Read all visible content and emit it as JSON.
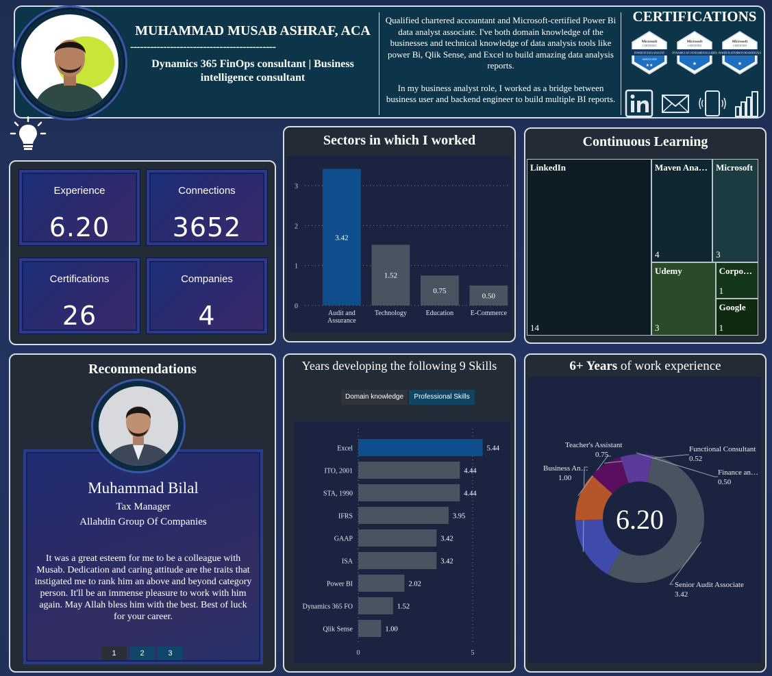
{
  "header": {
    "name": "MUHAMMAD MUSAB ASHRAF, ACA",
    "divider": "--------------------------------------------",
    "role": "Dynamics 365 FinOps consultant | Business intelligence consultant",
    "bio_1": "Qualified chartered accountant and Microsoft-certified Power Bi data analyst associate. I've both domain knowledge of the businesses and technical knowledge of data analysis tools like power Bi, Qlik Sense, and Excel to build amazing data analysis reports.",
    "bio_2": "In my business analyst role, I worked as a bridge between business user and backend engineer to build multiple BI reports.",
    "certifications_title": "CERTIFICATIONS",
    "badges": [
      {
        "top": "Microsoft",
        "sub": "CERTIFIED",
        "name": "POWER BI DATA ANALYST",
        "level": "ASSOCIATE"
      },
      {
        "top": "Microsoft",
        "sub": "CERTIFIED",
        "name": "DYNAMICS 365 FUNDAMENTALS (ERP)",
        "level": ""
      },
      {
        "top": "Microsoft",
        "sub": "CERTIFIED",
        "name": "POWER PLATFORM FUNDAMENTALS",
        "level": ""
      }
    ],
    "social_icons": [
      "linkedin-icon",
      "mail-icon",
      "phone-icon",
      "powerbi-icon"
    ]
  },
  "kpis": [
    {
      "label": "Experience",
      "value": "6.20"
    },
    {
      "label": "Connections",
      "value": "3652"
    },
    {
      "label": "Certifications",
      "value": "26"
    },
    {
      "label": "Companies",
      "value": "4"
    }
  ],
  "sectors": {
    "title": "Sectors in which I worked",
    "chart_data": {
      "type": "bar",
      "categories": [
        "Audit and Assurance",
        "Technology",
        "Education",
        "E-Commerce"
      ],
      "values": [
        3.42,
        1.52,
        0.75,
        0.5
      ],
      "ylim": [
        0,
        3.5
      ],
      "yticks": [
        0,
        1,
        2,
        3
      ],
      "grid": true,
      "colors": [
        "#0f4e8c",
        "#4a5360",
        "#4a5360",
        "#4a5360"
      ]
    }
  },
  "learning": {
    "title": "Continuous Learning",
    "chart_data": {
      "type": "treemap",
      "items": [
        {
          "name": "LinkedIn",
          "value": 14,
          "color": "#0d1c25"
        },
        {
          "name": "Maven Ana…",
          "value": 4,
          "color": "#0f2530"
        },
        {
          "name": "Microsoft",
          "value": 3,
          "color": "#1a3b3f"
        },
        {
          "name": "Udemy",
          "value": 3,
          "color": "#2a4a2a"
        },
        {
          "name": "Corpo…",
          "value": 1,
          "color": "#16361a"
        },
        {
          "name": "Google",
          "value": 1,
          "color": "#10290f"
        }
      ]
    }
  },
  "recommendations": {
    "title": "Recommendations",
    "person": "Muhammad Bilal",
    "position": "Tax Manager",
    "company": "Allahdin Group Of Companies",
    "quote": "It was a great esteem for me to be a colleague with Musab. Dedication and caring attitude are the traits that instigated me to rank him an above and beyond category person. It'll be an immense pleasure to work with him again. May Allah bless him with the best. Best of luck for your career.",
    "pages": [
      "1",
      "2",
      "3"
    ],
    "active_page": 0
  },
  "skills": {
    "title": "Years developing the following 9 Skills",
    "toggles": [
      "Domain knowledge",
      "Professional Skills"
    ],
    "active_toggle": 1,
    "chart_data": {
      "type": "bar",
      "orientation": "horizontal",
      "categories": [
        "Excel",
        "ITO, 2001",
        "STA, 1990",
        "IFRS",
        "GAAP",
        "ISA",
        "Power BI",
        "Dynamics 365 FO",
        "Qlik Sense"
      ],
      "values": [
        5.44,
        4.44,
        4.44,
        3.95,
        3.42,
        3.42,
        2.02,
        1.52,
        1.0
      ],
      "xlim": [
        0,
        5.6
      ],
      "xticks": [
        0,
        5
      ],
      "colors": [
        "#0f4e8c",
        "#4a5360",
        "#4a5360",
        "#4a5360",
        "#4a5360",
        "#4a5360",
        "#4a5360",
        "#4a5360",
        "#4a5360"
      ]
    }
  },
  "experience": {
    "title_bold": "6+ Years",
    "title_rest": " of work experience",
    "center_value": "6.20",
    "chart_data": {
      "type": "pie",
      "donut": true,
      "slices": [
        {
          "name": "Senior Audit Associate",
          "value": 3.42,
          "color": "#4a5360"
        },
        {
          "name": "Business An…",
          "value": 1.0,
          "color": "#3f4aaa"
        },
        {
          "name": "Teacher's Assistant",
          "value": 0.75,
          "color": "#b4552a"
        },
        {
          "name": "Functional Consultant",
          "value": 0.52,
          "color": "#5a0f5e"
        },
        {
          "name": "Finance an…",
          "value": 0.5,
          "color": "#5b3a9a"
        }
      ]
    }
  }
}
